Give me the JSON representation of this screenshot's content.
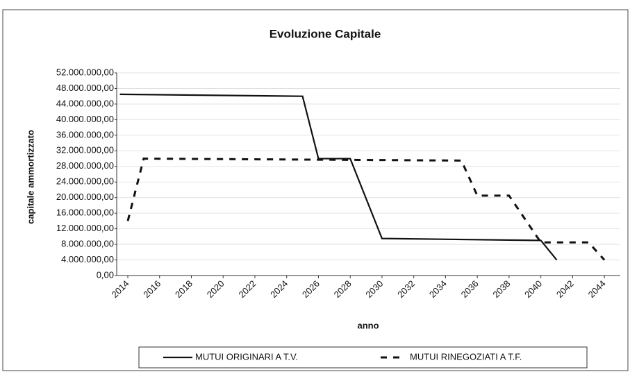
{
  "chart_data": {
    "type": "line",
    "title": "Evoluzione Capitale",
    "x_label": "anno",
    "y_label": "capitale ammortizzato",
    "series": [
      {
        "name": "MUTUI ORIGINARI A T.V.",
        "color": "#111111",
        "dash": false,
        "x": [
          2013.5,
          2025,
          2026,
          2028,
          2030,
          2040,
          2041
        ],
        "values": [
          46500000,
          46000000,
          30000000,
          30000000,
          9500000,
          9000000,
          4000000
        ]
      },
      {
        "name": "MUTUI RINEGOZIATI A T.F.",
        "color": "#111111",
        "dash": true,
        "x": [
          2014,
          2015,
          2035,
          2036,
          2038,
          2040,
          2043,
          2044
        ],
        "values": [
          14000000,
          30000000,
          29500000,
          20500000,
          20500000,
          8500000,
          8500000,
          4000000
        ]
      }
    ],
    "xlim": [
      2013.3,
      2045
    ],
    "xticks": [
      2014,
      2016,
      2018,
      2020,
      2022,
      2024,
      2026,
      2028,
      2030,
      2032,
      2034,
      2036,
      2038,
      2040,
      2042,
      2044
    ],
    "ylim": [
      0,
      52000000
    ],
    "yticks": [
      {
        "value": 0,
        "label": "0,00"
      },
      {
        "value": 4000000,
        "label": "4.000.000,00"
      },
      {
        "value": 8000000,
        "label": "8.000.000,00"
      },
      {
        "value": 12000000,
        "label": "12.000.000,00"
      },
      {
        "value": 16000000,
        "label": "16.000.000,00"
      },
      {
        "value": 20000000,
        "label": "20.000.000,00"
      },
      {
        "value": 24000000,
        "label": "24.000.000,00"
      },
      {
        "value": 28000000,
        "label": "28.000.000,00"
      },
      {
        "value": 32000000,
        "label": "32.000.000,00"
      },
      {
        "value": 36000000,
        "label": "36.000.000,00"
      },
      {
        "value": 40000000,
        "label": "40.000.000,00"
      },
      {
        "value": 44000000,
        "label": "44.000.000,00"
      },
      {
        "value": 48000000,
        "label": "48.000.000,00"
      },
      {
        "value": 52000000,
        "label": "52.000.000,00"
      }
    ],
    "grid": true
  }
}
